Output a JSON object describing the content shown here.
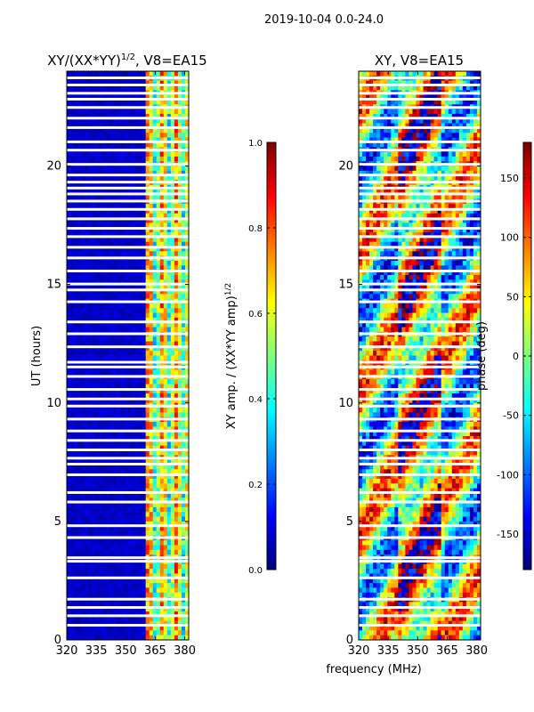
{
  "figure": {
    "suptitle": "2019-10-04 0.0-24.0"
  },
  "colors": {
    "jet": [
      "#00007f",
      "#0000ff",
      "#007fff",
      "#00ffff",
      "#7fff7f",
      "#ffff00",
      "#ff7f00",
      "#ff0000",
      "#7f0000"
    ],
    "frame": "#000000",
    "gap": "#ffffff"
  },
  "chart_data": [
    {
      "type": "heatmap",
      "title": "XY/(XX*YY)^1/2, V8=EA15",
      "title_main": "XY/(XX*YY)",
      "title_sup": "1/2",
      "title_tail": ", V8=EA15",
      "xlabel": "",
      "ylabel": "UT (hours)",
      "x_range": [
        320,
        382
      ],
      "y_range": [
        0,
        24
      ],
      "x_ticks": [
        320,
        335,
        350,
        365,
        380
      ],
      "x_tick_labels": [
        "320",
        "335",
        "350",
        "365",
        "380"
      ],
      "y_ticks": [
        0,
        5,
        10,
        15,
        20
      ],
      "y_tick_labels": [
        "0",
        "5",
        "10",
        "15",
        "20"
      ],
      "description_of_content": "Low amplitude (~0.05) below 360 MHz; bright amplitude band (~0.3-0.9) between 360 and 382 MHz; horizontal white gaps where data missing.",
      "colorbar": {
        "label": "XY amp. / (XX*YY amp)",
        "label_sup": "1/2",
        "range": [
          0.0,
          1.0
        ],
        "ticks": [
          0.0,
          0.2,
          0.4,
          0.6,
          0.8,
          1.0
        ],
        "tick_labels": [
          "0.0",
          "0.2",
          "0.4",
          "0.6",
          "0.8",
          "1.0"
        ]
      }
    },
    {
      "type": "heatmap",
      "title": "XY, V8=EA15",
      "xlabel": "frequency (MHz)",
      "ylabel": "",
      "x_range": [
        320,
        382
      ],
      "y_range": [
        0,
        24
      ],
      "x_ticks": [
        320,
        335,
        350,
        365,
        380
      ],
      "x_tick_labels": [
        "320",
        "335",
        "350",
        "365",
        "380"
      ],
      "y_ticks": [
        0,
        5,
        10,
        15,
        20
      ],
      "y_tick_labels": [
        "0",
        "5",
        "10",
        "15",
        "20"
      ],
      "description_of_content": "Phase in degrees spanning -180 to 180; banded/noisy structure with horizontal white gaps.",
      "colorbar": {
        "label": "phase (deg)",
        "range": [
          -180,
          180
        ],
        "ticks": [
          -150,
          -100,
          -50,
          0,
          50,
          100,
          150
        ],
        "tick_labels": [
          "-150",
          "-100",
          "-50",
          "0",
          "50",
          "100",
          "150"
        ]
      }
    }
  ],
  "gap_hours": [
    0.6,
    1.0,
    1.35,
    1.7,
    2.6,
    3.3,
    3.45,
    4.3,
    4.8,
    5.8,
    6.2,
    6.95,
    7.4,
    7.65,
    8.0,
    8.4,
    8.8,
    9.3,
    9.85,
    10.15,
    10.55,
    11.1,
    11.5,
    11.7,
    12.35,
    12.9,
    13.4,
    14.25,
    14.75,
    15.0,
    15.55,
    16.1,
    16.55,
    17.0,
    17.35,
    17.75,
    18.15,
    18.5,
    18.8,
    19.05,
    19.3,
    19.6,
    20.05,
    20.65,
    21.0,
    21.6,
    22.0,
    22.45,
    22.8,
    23.05,
    23.4,
    23.7
  ]
}
